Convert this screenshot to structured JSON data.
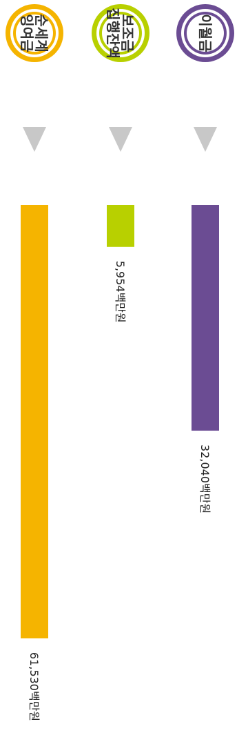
{
  "chart_data": {
    "type": "bar",
    "orientation": "rotated-90-clockwise",
    "categories": [
      "이월금",
      "보조금 집행잔액",
      "순세계 잉여금"
    ],
    "category_lines": [
      [
        "이월금"
      ],
      [
        "보조금",
        "집행잔액"
      ],
      [
        "순세계",
        "잉여금"
      ]
    ],
    "values": [
      32040,
      5954,
      61530
    ],
    "value_labels": [
      "32,040백만원",
      "5,954백만원",
      "61,530백만원"
    ],
    "unit": "백만원",
    "colors": [
      "#6b4c93",
      "#b8d000",
      "#f5b400"
    ],
    "xlabel": "",
    "ylabel": "",
    "grid": false,
    "legend": "none"
  }
}
